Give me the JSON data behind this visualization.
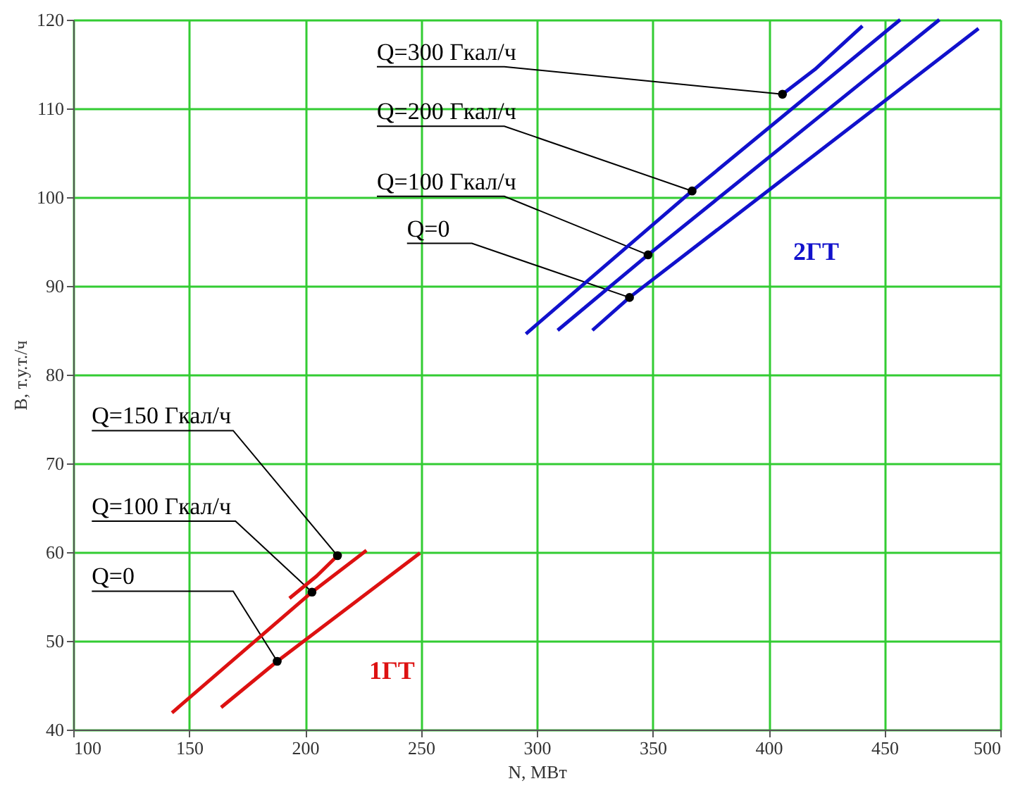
{
  "chart_data": {
    "type": "line",
    "xlabel": "N, МВт",
    "ylabel": "B, т.у.т./ч",
    "xlim": [
      100,
      500
    ],
    "ylim": [
      40,
      120
    ],
    "xticks": [
      100,
      150,
      200,
      250,
      300,
      350,
      400,
      450,
      500
    ],
    "yticks": [
      40,
      50,
      60,
      70,
      80,
      90,
      100,
      110,
      120
    ],
    "grid": true,
    "line_style": "solid",
    "marker": "none",
    "series": [
      {
        "name": "Q=0",
        "color": "#dd1111",
        "x": [
          163.8,
          188,
          249.6
        ],
        "values": [
          42.5,
          47.7,
          59.9
        ]
      },
      {
        "name": "Q=100 Гкал/ч",
        "color": "#dd1111",
        "x": [
          142.6,
          203,
          226.5
        ],
        "values": [
          41.9,
          55.5,
          60.2
        ]
      },
      {
        "name": "Q=150 Гкал/ч",
        "color": "#dd1111",
        "x": [
          193.3,
          205,
          214
        ],
        "values": [
          54.8,
          57.3,
          59.6
        ]
      },
      {
        "name": "Q=0",
        "color": "#1111cc",
        "x": [
          324,
          340,
          490.6
        ],
        "values": [
          85.0,
          88.7,
          119.0
        ]
      },
      {
        "name": "Q=100 Гкал/ч",
        "color": "#1111cc",
        "x": [
          309,
          348,
          473.7
        ],
        "values": [
          85.0,
          93.5,
          120
        ]
      },
      {
        "name": "Q=200 Гкал/ч",
        "color": "#1111cc",
        "x": [
          295.3,
          367,
          456.8
        ],
        "values": [
          84.6,
          100.7,
          120
        ]
      },
      {
        "name": "Q=300 Гкал/ч",
        "color": "#1111cc",
        "x": [
          406,
          420,
          440.5
        ],
        "values": [
          111.6,
          114.4,
          119.3
        ]
      }
    ],
    "annotations": [
      "1ГТ",
      "2ГТ"
    ]
  }
}
